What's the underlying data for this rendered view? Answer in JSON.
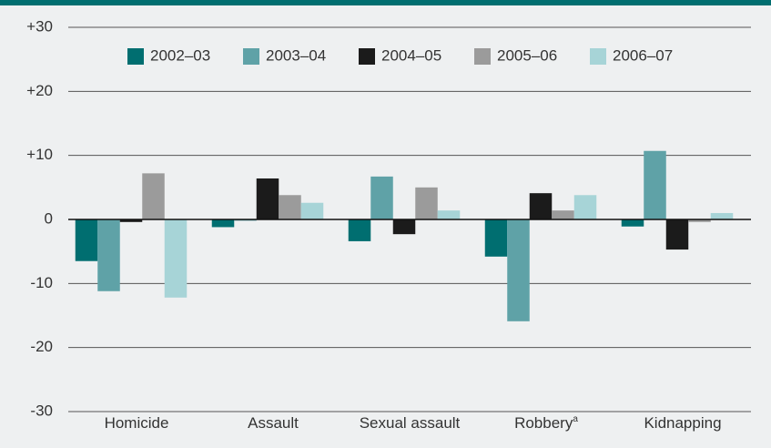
{
  "chart_data": {
    "type": "bar",
    "categories": [
      "Homicide",
      "Assault",
      "Sexual assault",
      "Robbery",
      "Kidnapping"
    ],
    "category_markers": {
      "3": "a"
    },
    "series": [
      {
        "name": "2002–03",
        "color": "#006e70",
        "values": [
          -6.5,
          -1.2,
          -3.4,
          -5.8,
          -1.1
        ]
      },
      {
        "name": "2003–04",
        "color": "#5fa2a7",
        "values": [
          -11.2,
          -0.2,
          6.7,
          -15.9,
          10.7
        ]
      },
      {
        "name": "2004–05",
        "color": "#1b1b1b",
        "values": [
          -0.4,
          6.4,
          -2.3,
          4.1,
          -4.7
        ]
      },
      {
        "name": "2005–06",
        "color": "#9b9b9b",
        "values": [
          7.2,
          3.8,
          5.0,
          1.4,
          -0.4
        ]
      },
      {
        "name": "2006–07",
        "color": "#a7d4d7",
        "values": [
          -12.2,
          2.6,
          1.4,
          3.8,
          1.0
        ]
      }
    ],
    "ylim": [
      -30,
      30
    ],
    "yticks": [
      -30,
      -20,
      -10,
      0,
      {
        "value": 10,
        "label": "+10"
      },
      {
        "value": 20,
        "label": "+20"
      },
      {
        "value": 30,
        "label": "+30"
      }
    ],
    "grid": true,
    "legend": "top"
  }
}
